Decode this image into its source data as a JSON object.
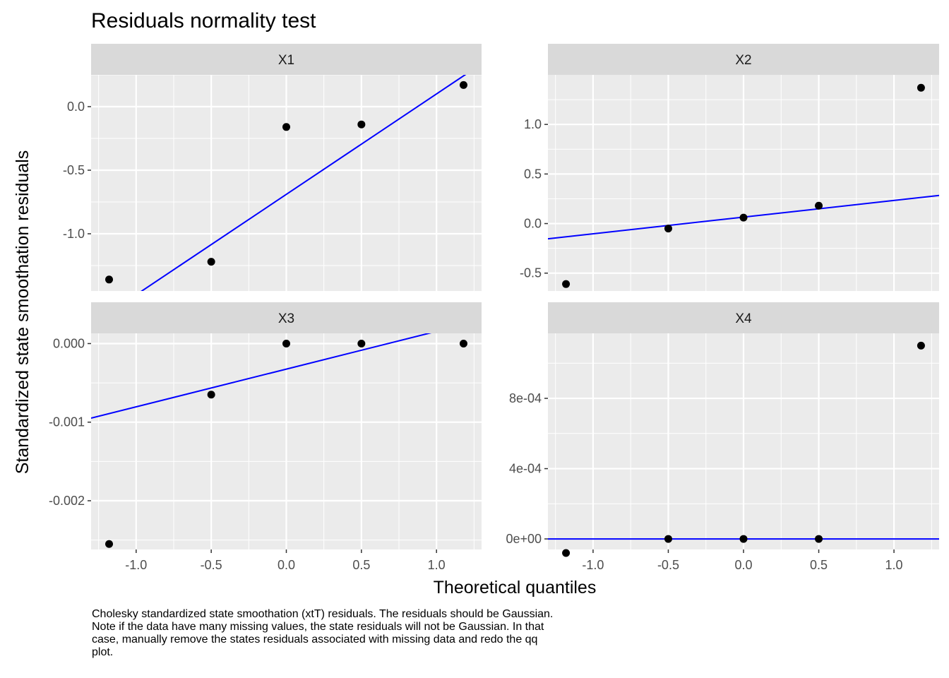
{
  "chart_data": {
    "type": "scatter",
    "title": "Residuals normality test",
    "xlabel": "Theoretical quantiles",
    "ylabel": "Standardized state smoothation residuals",
    "caption": "Cholesky standardized state smoothation (xtT) residuals. The residuals should be Gaussian. Note if the data have many missing values, the state residuals will not be Gaussian. In that case, manually remove the states residuals associated with missing data and redo the qq plot.",
    "grid": true,
    "colors": {
      "points": "#000000",
      "line": "#0000ff",
      "panel": "#ebebeb",
      "strip": "#d9d9d9",
      "grid": "#ffffff"
    },
    "xlim": [
      -1.3,
      1.3
    ],
    "x_ticks": [
      -1.0,
      -0.5,
      0.0,
      0.5,
      1.0
    ],
    "x_tick_labels": [
      "-1.0",
      "-0.5",
      "0.0",
      "0.5",
      "1.0"
    ],
    "panels": [
      {
        "name": "X1",
        "ylim": [
          -1.45,
          0.25
        ],
        "y_ticks": [
          0.0,
          -0.5,
          -1.0
        ],
        "y_tick_labels": [
          "0.0",
          "-0.5",
          "-1.0"
        ],
        "points": {
          "x": [
            -1.18,
            -0.5,
            0.0,
            0.5,
            1.18
          ],
          "y": [
            -1.36,
            -1.22,
            -0.16,
            -0.14,
            0.17
          ]
        },
        "qqline": {
          "intercept": -0.69,
          "slope": 0.79
        }
      },
      {
        "name": "X2",
        "ylim": [
          -0.68,
          1.5
        ],
        "y_ticks": [
          1.0,
          0.5,
          0.0,
          -0.5
        ],
        "y_tick_labels": [
          "1.0",
          "0.5",
          "0.0",
          "-0.5"
        ],
        "points": {
          "x": [
            -1.18,
            -0.5,
            0.0,
            0.5,
            1.18
          ],
          "y": [
            -0.61,
            -0.05,
            0.06,
            0.18,
            1.37
          ]
        },
        "qqline": {
          "intercept": 0.065,
          "slope": 0.168
        }
      },
      {
        "name": "X3",
        "ylim": [
          -0.00262,
          0.00013
        ],
        "y_ticks": [
          0.0,
          -0.001,
          -0.002
        ],
        "y_tick_labels": [
          "0.000",
          "-0.001",
          "-0.002"
        ],
        "points": {
          "x": [
            -1.18,
            -0.5,
            0.0,
            0.5,
            1.18
          ],
          "y": [
            -0.00255,
            -0.00065,
            0.0,
            0.0,
            0.0
          ]
        },
        "qqline": {
          "intercept": -0.000325,
          "slope": 0.00048
        }
      },
      {
        "name": "X4",
        "ylim": [
          -6e-05,
          0.00117
        ],
        "y_ticks": [
          0.0008,
          0.0004,
          0.0
        ],
        "y_tick_labels": [
          "8e-04",
          "4e-04",
          "0e+00"
        ],
        "points": {
          "x": [
            -1.18,
            -0.5,
            0.0,
            0.5,
            1.18
          ],
          "y": [
            -8e-05,
            0.0,
            0.0,
            0.0,
            0.0011
          ]
        },
        "qqline": {
          "intercept": 0.0,
          "slope": 0.0
        }
      }
    ]
  }
}
